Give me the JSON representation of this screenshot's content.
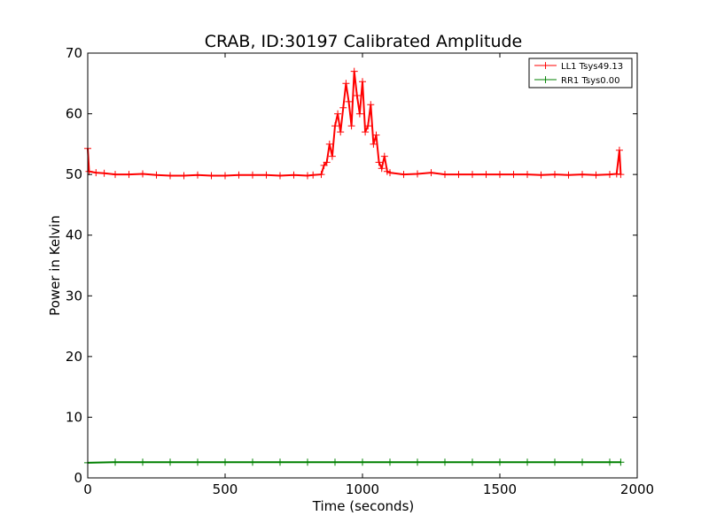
{
  "chart_data": {
    "type": "line",
    "title": "CRAB, ID:30197 Calibrated Amplitude",
    "xlabel": "Time (seconds)",
    "ylabel": "Power in Kelvin",
    "xlim": [
      0,
      2000
    ],
    "ylim": [
      0,
      70
    ],
    "xticks": [
      0,
      500,
      1000,
      1500,
      2000
    ],
    "yticks": [
      0,
      10,
      20,
      30,
      40,
      50,
      60,
      70
    ],
    "xtick_labels": [
      "0",
      "500",
      "1000",
      "1500",
      "2000"
    ],
    "ytick_labels": [
      "0",
      "10",
      "20",
      "30",
      "40",
      "50",
      "60",
      "70"
    ],
    "grid": false,
    "legend_position": "top-right",
    "marker": "+",
    "series": [
      {
        "name": "LL1 Tsys49.13",
        "color": "#ff0000",
        "x": [
          0,
          5,
          30,
          60,
          100,
          150,
          200,
          250,
          300,
          350,
          400,
          450,
          500,
          550,
          600,
          650,
          700,
          750,
          800,
          820,
          850,
          860,
          870,
          880,
          890,
          900,
          910,
          920,
          930,
          940,
          950,
          960,
          970,
          980,
          990,
          1000,
          1010,
          1020,
          1030,
          1040,
          1050,
          1060,
          1070,
          1080,
          1090,
          1100,
          1150,
          1200,
          1250,
          1300,
          1350,
          1400,
          1450,
          1500,
          1550,
          1600,
          1650,
          1700,
          1750,
          1800,
          1850,
          1900,
          1925,
          1935,
          1940
        ],
        "y": [
          54.3,
          50.5,
          50.3,
          50.2,
          50.0,
          50.0,
          50.1,
          49.9,
          49.8,
          49.8,
          49.9,
          49.8,
          49.8,
          49.9,
          49.9,
          49.9,
          49.8,
          49.9,
          49.8,
          49.9,
          50.0,
          51.5,
          52.0,
          55.0,
          53.0,
          58.0,
          60.0,
          57.0,
          61.0,
          65.0,
          62.0,
          58.0,
          67.0,
          63.0,
          60.0,
          65.3,
          57.0,
          58.0,
          61.5,
          55.0,
          56.5,
          52.0,
          51.0,
          53.0,
          50.5,
          50.3,
          50.0,
          50.1,
          50.3,
          50.0,
          50.0,
          50.0,
          50.0,
          50.0,
          50.0,
          50.0,
          49.9,
          50.0,
          49.9,
          50.0,
          49.9,
          50.0,
          50.1,
          54.0,
          50.0
        ]
      },
      {
        "name": "RR1 Tsys0.00",
        "color": "#008000",
        "x": [
          0,
          100,
          200,
          300,
          400,
          500,
          600,
          700,
          800,
          900,
          1000,
          1100,
          1200,
          1300,
          1400,
          1500,
          1600,
          1700,
          1800,
          1900,
          1940
        ],
        "y": [
          2.5,
          2.6,
          2.6,
          2.6,
          2.6,
          2.6,
          2.6,
          2.6,
          2.6,
          2.6,
          2.6,
          2.6,
          2.6,
          2.6,
          2.6,
          2.6,
          2.6,
          2.6,
          2.6,
          2.6,
          2.6
        ]
      }
    ]
  }
}
